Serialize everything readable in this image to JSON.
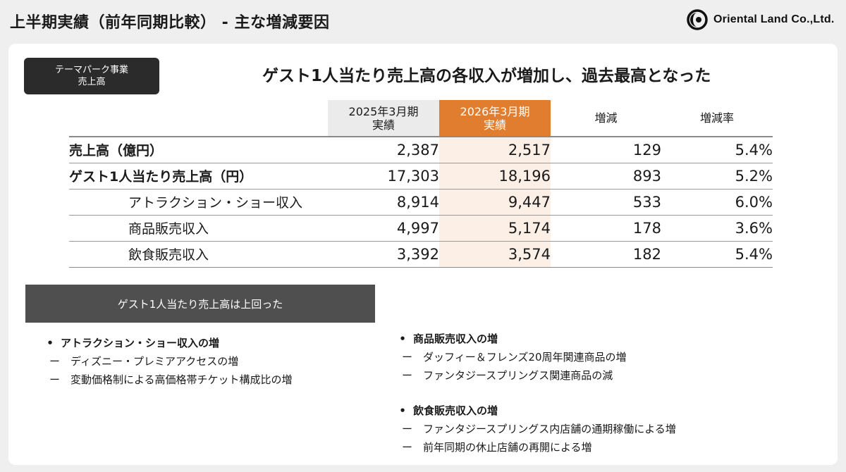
{
  "header": {
    "title": "上半期実績（前年同期比較） - 主な増減要因",
    "company": "Oriental Land Co.,Ltd."
  },
  "tag": {
    "line1": "テーマパーク事業",
    "line2": "売上高"
  },
  "headline": "ゲスト1人当たり売上高の各収入が増加し、過去最高となった",
  "table": {
    "columns": [
      {
        "line1": "2025年3月期",
        "line2": "実績"
      },
      {
        "line1": "2026年3月期",
        "line2": "実績"
      },
      {
        "line1": "増減",
        "line2": ""
      },
      {
        "line1": "増減率",
        "line2": ""
      }
    ],
    "rows": [
      {
        "label": "売上高（億円）",
        "prev": "2,387",
        "cur": "2,517",
        "diff": "129",
        "rate": "5.4%"
      },
      {
        "label": "ゲスト1人当たり売上高（円）",
        "prev": "17,303",
        "cur": "18,196",
        "diff": "893",
        "rate": "5.2%"
      },
      {
        "label": "アトラクション・ショー収入",
        "prev": "8,914",
        "cur": "9,447",
        "diff": "533",
        "rate": "6.0%"
      },
      {
        "label": "商品販売収入",
        "prev": "4,997",
        "cur": "5,174",
        "diff": "178",
        "rate": "3.6%"
      },
      {
        "label": "飲食販売収入",
        "prev": "3,392",
        "cur": "3,574",
        "diff": "182",
        "rate": "5.4%"
      }
    ]
  },
  "summary": "ゲスト1人当たり売上高は上回った",
  "factors": {
    "bullet": "•",
    "dash": "ー",
    "attraction": {
      "title": "アトラクション・ショー収入の増",
      "items": [
        "ディズニー・プレミアアクセスの増",
        "変動価格制による高価格帯チケット構成比の増"
      ]
    },
    "merchandise": {
      "title": "商品販売収入の増",
      "items": [
        "ダッフィー＆フレンズ20周年関連商品の増",
        "ファンタジースプリングス関連商品の減"
      ]
    },
    "food": {
      "title": "飲食販売収入の増",
      "items": [
        "ファンタジースプリングス内店舗の通期稼働による増",
        "前年同期の休止店舗の再開による増"
      ]
    }
  }
}
